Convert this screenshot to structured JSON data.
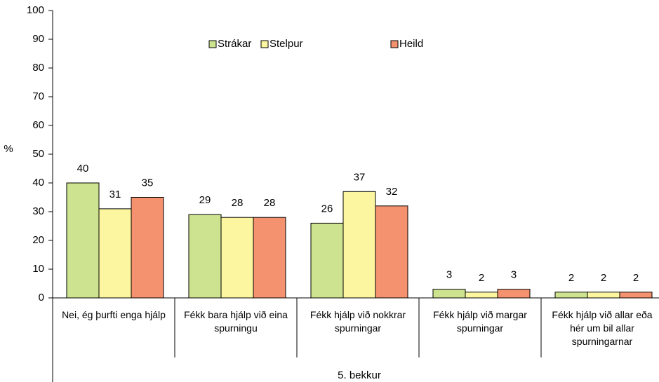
{
  "chart_data": {
    "type": "bar",
    "y_label": "%",
    "group_label": "5. bekkur",
    "categories": [
      "Nei, ég þurfti enga hjálp",
      "Fékk bara hjálp við eina spurningu",
      "Fékk hjálp við nokkrar spurningar",
      "Fékk hjálp við margar spurningar",
      "Fékk hjálp við allar eða hér um bil allar spurningarnar"
    ],
    "series": [
      {
        "name": "Strákar",
        "color": "#cde38f",
        "values": [
          40,
          29,
          26,
          3,
          2
        ]
      },
      {
        "name": "Stelpur",
        "color": "#fdf6a1",
        "values": [
          31,
          28,
          37,
          2,
          2
        ]
      },
      {
        "name": "Heild",
        "color": "#f4916e",
        "values": [
          35,
          28,
          32,
          3,
          2
        ]
      }
    ],
    "ylim": [
      0,
      100
    ],
    "yticks": [
      0,
      10,
      20,
      30,
      40,
      50,
      60,
      70,
      80,
      90,
      100
    ]
  }
}
